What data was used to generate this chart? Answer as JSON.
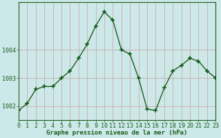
{
  "x": [
    0,
    1,
    2,
    3,
    4,
    5,
    6,
    7,
    8,
    9,
    10,
    11,
    12,
    13,
    14,
    15,
    16,
    17,
    18,
    19,
    20,
    21,
    22,
    23
  ],
  "y": [
    1001.85,
    1002.1,
    1002.6,
    1002.7,
    1002.7,
    1003.0,
    1003.25,
    1003.7,
    1004.2,
    1004.85,
    1005.35,
    1005.05,
    1004.0,
    1003.85,
    1003.0,
    1001.9,
    1001.85,
    1002.65,
    1003.25,
    1003.45,
    1003.7,
    1003.6,
    1003.25,
    1003.0
  ],
  "line_color": "#1a5c1a",
  "marker": "+",
  "marker_size": 4,
  "marker_linewidth": 1.2,
  "bg_color": "#cce8e8",
  "grid_color_v": "#c8a0a0",
  "grid_color_h": "#c8a0a0",
  "axis_color": "#1a5c1a",
  "xlabel": "Graphe pression niveau de la mer (hPa)",
  "xlabel_fontsize": 6.5,
  "ylabel_ticks": [
    1002,
    1003,
    1004
  ],
  "xlim": [
    0,
    23
  ],
  "ylim": [
    1001.5,
    1005.7
  ],
  "tick_fontsize": 6.0,
  "line_width": 1.0
}
